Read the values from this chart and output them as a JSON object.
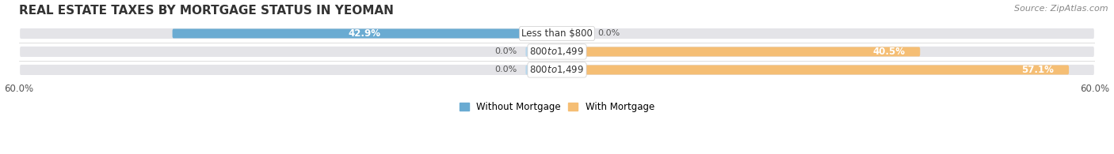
{
  "title": "Real Estate Taxes by Mortgage Status in Yeoman",
  "source": "Source: ZipAtlas.com",
  "categories": [
    "Less than $800",
    "$800 to $1,499",
    "$800 to $1,499"
  ],
  "without_mortgage": [
    42.9,
    0.0,
    0.0
  ],
  "with_mortgage": [
    0.0,
    40.5,
    57.1
  ],
  "xlim": 60.0,
  "color_without": "#6aabd2",
  "color_with": "#f5be74",
  "color_without_light": "#b8d8ed",
  "bar_height": 0.52,
  "background_bar_color": "#e4e4e8",
  "legend_without": "Without Mortgage",
  "legend_with": "With Mortgage",
  "title_fontsize": 11,
  "label_fontsize": 8.5,
  "tick_fontsize": 8.5,
  "source_fontsize": 8
}
